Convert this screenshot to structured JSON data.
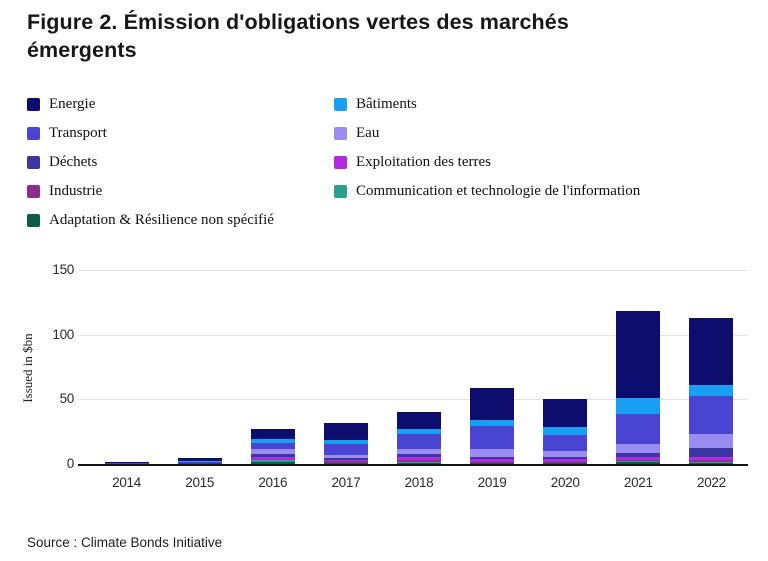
{
  "figure": {
    "title": "Figure 2. Émission d'obligations vertes des marchés émergents",
    "source": "Source : Climate Bonds Initiative"
  },
  "colors": {
    "energie": "#0D0D6E",
    "transport": "#4945D2",
    "dechets": "#3A37A3",
    "industrie": "#8F2D8F",
    "adaptation": "#0D5C4A",
    "batiments": "#189FF2",
    "eau": "#9A8CF0",
    "exploitation": "#B32BE0",
    "communication": "#2BA08E",
    "gridline": "#e2e2e2",
    "axis": "#141414"
  },
  "legend": {
    "columns": [
      [
        {
          "label": "Energie",
          "color": "#0D0D6E"
        },
        {
          "label": "Transport",
          "color": "#4945D2"
        },
        {
          "label": "Déchets",
          "color": "#3A37A3"
        },
        {
          "label": "Industrie",
          "color": "#8F2D8F"
        },
        {
          "label": "Adaptation & Résilience non spécifié",
          "color": "#0D5C4A"
        }
      ],
      [
        {
          "label": "Bâtiments",
          "color": "#189FF2"
        },
        {
          "label": "Eau",
          "color": "#9A8CF0"
        },
        {
          "label": "Exploitation des terres",
          "color": "#B32BE0"
        },
        {
          "label": "Communication et technologie de l'information",
          "color": "#2BA08E"
        }
      ]
    ]
  },
  "chart_data": {
    "type": "bar",
    "stacked": true,
    "title": "Figure 2. Émission d'obligations vertes des marchés émergents",
    "xlabel": "",
    "ylabel": "Issued in $bn",
    "ylim": [
      0,
      150
    ],
    "yticks": [
      0,
      50,
      100,
      150
    ],
    "grid": true,
    "legend_position": "top-left-two-columns",
    "categories": [
      "2014",
      "2015",
      "2016",
      "2017",
      "2018",
      "2019",
      "2020",
      "2021",
      "2022"
    ],
    "stack_order": "bottom-to-top",
    "series": [
      {
        "name": "Adaptation & Résilience non spécifié",
        "color": "#0D5C4A",
        "values": [
          0,
          0,
          1.7,
          0.5,
          0.7,
          0.5,
          0.5,
          1.5,
          1.0
        ]
      },
      {
        "name": "Communication et technologie de l'information",
        "color": "#2BA08E",
        "values": [
          0,
          0,
          1.5,
          0.5,
          0.7,
          0.5,
          0.5,
          0.7,
          0.8
        ]
      },
      {
        "name": "Industrie",
        "color": "#8F2D8F",
        "values": [
          0,
          0.1,
          0.3,
          1.3,
          1.8,
          0.8,
          0.8,
          1.0,
          1.2
        ]
      },
      {
        "name": "Exploitation des terres",
        "color": "#B32BE0",
        "values": [
          0,
          0.1,
          2.0,
          0.5,
          2.0,
          2.0,
          1.8,
          2.0,
          2.6
        ]
      },
      {
        "name": "Déchets",
        "color": "#3A37A3",
        "values": [
          0,
          0.3,
          2.3,
          1.8,
          2.5,
          1.5,
          1.8,
          3.0,
          6.9
        ]
      },
      {
        "name": "Eau",
        "color": "#9A8CF0",
        "values": [
          0,
          0.2,
          3.8,
          2.6,
          3.8,
          6.0,
          5.0,
          7.5,
          11.0
        ]
      },
      {
        "name": "Transport",
        "color": "#4945D2",
        "values": [
          0.4,
          1.2,
          4.6,
          8.4,
          11.5,
          18.0,
          12.0,
          23.0,
          29.0
        ]
      },
      {
        "name": "Bâtiments",
        "color": "#189FF2",
        "values": [
          0,
          0.2,
          3.0,
          3.1,
          3.8,
          5.0,
          6.0,
          12.5,
          8.5
        ]
      },
      {
        "name": "Energie",
        "color": "#0D0D6E",
        "values": [
          1.5,
          2.7,
          7.6,
          13.4,
          13.8,
          24.5,
          21.6,
          67.0,
          52.0
        ]
      }
    ]
  }
}
